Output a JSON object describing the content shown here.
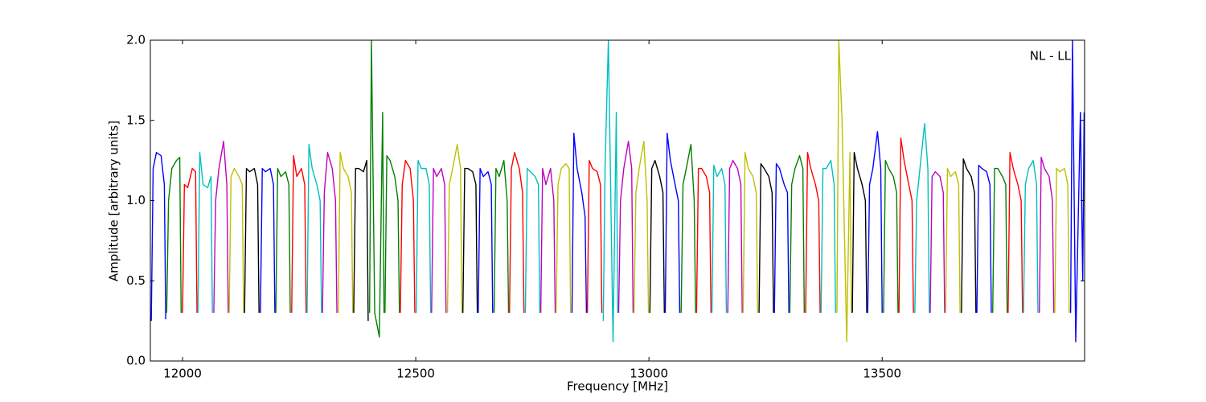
{
  "chart_data": {
    "type": "line",
    "xlabel": "Frequency [MHz]",
    "ylabel": "Amplitude [arbitrary units]",
    "annotation": "NL - LL",
    "xlim": [
      11931,
      13934
    ],
    "ylim": [
      0,
      2
    ],
    "xticks": [
      12000,
      12500,
      13000,
      13500
    ],
    "yticks": [
      {
        "value": 0,
        "label": "0.0"
      },
      {
        "value": 0.5,
        "label": "0.5"
      },
      {
        "value": 1,
        "label": "1.0"
      },
      {
        "value": 1.5,
        "label": "1.5"
      },
      {
        "value": 2,
        "label": "2.0"
      }
    ],
    "series": [
      {
        "color": "#0000ff",
        "x": [
          11933,
          11937,
          11944,
          11954,
          11961,
          11964
        ],
        "values": [
          0.25,
          1.2,
          1.3,
          1.28,
          1.1,
          0.26
        ]
      },
      {
        "color": "#008000",
        "x": [
          11966,
          11970,
          11977,
          11987,
          11994,
          11997
        ],
        "values": [
          0.3,
          1.0,
          1.2,
          1.25,
          1.27,
          0.3
        ]
      },
      {
        "color": "#ff0000",
        "x": [
          12000,
          12004,
          12011,
          12021,
          12028,
          12031
        ],
        "values": [
          0.3,
          1.1,
          1.08,
          1.2,
          1.18,
          0.3
        ]
      },
      {
        "color": "#00bfbf",
        "x": [
          12033,
          12037,
          12044,
          12054,
          12061,
          12064
        ],
        "values": [
          0.3,
          1.3,
          1.1,
          1.08,
          1.15,
          0.3
        ]
      },
      {
        "color": "#bf00bf",
        "x": [
          12067,
          12071,
          12078,
          12088,
          12095,
          12098
        ],
        "values": [
          0.3,
          1.0,
          1.2,
          1.37,
          1.1,
          0.3
        ]
      },
      {
        "color": "#bfbf00",
        "x": [
          12100,
          12104,
          12111,
          12121,
          12128,
          12131
        ],
        "values": [
          0.3,
          1.15,
          1.2,
          1.15,
          1.1,
          0.3
        ]
      },
      {
        "color": "#000000",
        "x": [
          12133,
          12137,
          12144,
          12154,
          12161,
          12164
        ],
        "values": [
          0.3,
          1.2,
          1.18,
          1.2,
          1.1,
          0.3
        ]
      },
      {
        "color": "#0000ff",
        "x": [
          12167,
          12171,
          12178,
          12188,
          12195,
          12198
        ],
        "values": [
          0.3,
          1.2,
          1.18,
          1.2,
          1.1,
          0.3
        ]
      },
      {
        "color": "#008000",
        "x": [
          12200,
          12204,
          12211,
          12221,
          12228,
          12231
        ],
        "values": [
          0.3,
          1.2,
          1.15,
          1.18,
          1.1,
          0.3
        ]
      },
      {
        "color": "#ff0000",
        "x": [
          12234,
          12238,
          12245,
          12255,
          12262,
          12265
        ],
        "values": [
          0.3,
          1.28,
          1.15,
          1.2,
          1.1,
          0.3
        ]
      },
      {
        "color": "#00bfbf",
        "x": [
          12267,
          12271,
          12278,
          12288,
          12295,
          12298
        ],
        "values": [
          0.3,
          1.35,
          1.2,
          1.1,
          1.0,
          0.3
        ]
      },
      {
        "color": "#bf00bf",
        "x": [
          12300,
          12304,
          12311,
          12321,
          12328,
          12331
        ],
        "values": [
          0.3,
          1.05,
          1.3,
          1.2,
          1.0,
          0.3
        ]
      },
      {
        "color": "#bfbf00",
        "x": [
          12334,
          12338,
          12345,
          12355,
          12362,
          12365
        ],
        "values": [
          0.3,
          1.3,
          1.2,
          1.15,
          1.05,
          0.3
        ]
      },
      {
        "color": "#000000",
        "x": [
          12367,
          12371,
          12378,
          12388,
          12395,
          12398
        ],
        "values": [
          0.3,
          1.2,
          1.2,
          1.18,
          1.25,
          0.25
        ]
      },
      {
        "color": "#008000",
        "x": [
          12401,
          12405,
          12412,
          12422,
          12429,
          12432
        ],
        "values": [
          0.3,
          2.0,
          0.3,
          0.15,
          1.55,
          0.3
        ]
      },
      {
        "color": "#008000",
        "x": [
          12434,
          12438,
          12445,
          12455,
          12462,
          12465
        ],
        "values": [
          0.3,
          1.28,
          1.25,
          1.15,
          1.0,
          0.3
        ]
      },
      {
        "color": "#ff0000",
        "x": [
          12467,
          12471,
          12478,
          12488,
          12495,
          12498
        ],
        "values": [
          0.3,
          1.1,
          1.25,
          1.2,
          1.0,
          0.3
        ]
      },
      {
        "color": "#00bfbf",
        "x": [
          12501,
          12505,
          12512,
          12522,
          12529,
          12532
        ],
        "values": [
          0.3,
          1.25,
          1.2,
          1.2,
          1.1,
          0.3
        ]
      },
      {
        "color": "#bf00bf",
        "x": [
          12534,
          12538,
          12545,
          12555,
          12562,
          12565
        ],
        "values": [
          0.3,
          1.2,
          1.15,
          1.2,
          1.1,
          0.3
        ]
      },
      {
        "color": "#bfbf00",
        "x": [
          12568,
          12572,
          12579,
          12589,
          12596,
          12599
        ],
        "values": [
          0.3,
          1.1,
          1.2,
          1.35,
          1.2,
          0.3
        ]
      },
      {
        "color": "#000000",
        "x": [
          12601,
          12605,
          12612,
          12622,
          12629,
          12632
        ],
        "values": [
          0.3,
          1.2,
          1.2,
          1.18,
          1.1,
          0.3
        ]
      },
      {
        "color": "#0000ff",
        "x": [
          12634,
          12638,
          12645,
          12655,
          12662,
          12665
        ],
        "values": [
          0.3,
          1.2,
          1.15,
          1.18,
          1.1,
          0.3
        ]
      },
      {
        "color": "#008000",
        "x": [
          12668,
          12672,
          12679,
          12689,
          12696,
          12699
        ],
        "values": [
          0.3,
          1.2,
          1.15,
          1.25,
          1.0,
          0.3
        ]
      },
      {
        "color": "#ff0000",
        "x": [
          12701,
          12705,
          12712,
          12722,
          12729,
          12732
        ],
        "values": [
          0.3,
          1.2,
          1.3,
          1.2,
          1.05,
          0.3
        ]
      },
      {
        "color": "#00bfbf",
        "x": [
          12735,
          12739,
          12746,
          12756,
          12763,
          12766
        ],
        "values": [
          0.3,
          1.2,
          1.18,
          1.15,
          1.1,
          0.3
        ]
      },
      {
        "color": "#bf00bf",
        "x": [
          12768,
          12772,
          12779,
          12789,
          12796,
          12799
        ],
        "values": [
          0.3,
          1.2,
          1.1,
          1.2,
          1.0,
          0.3
        ]
      },
      {
        "color": "#bfbf00",
        "x": [
          12801,
          12805,
          12812,
          12822,
          12829,
          12832
        ],
        "values": [
          0.3,
          1.1,
          1.2,
          1.23,
          1.2,
          0.3
        ]
      },
      {
        "color": "#0000ff",
        "x": [
          12835,
          12839,
          12846,
          12856,
          12863,
          12866
        ],
        "values": [
          0.3,
          1.42,
          1.2,
          1.05,
          0.9,
          0.3
        ]
      },
      {
        "color": "#ff0000",
        "x": [
          12868,
          12872,
          12879,
          12889,
          12896,
          12899
        ],
        "values": [
          0.3,
          1.25,
          1.2,
          1.18,
          1.1,
          0.3
        ]
      },
      {
        "color": "#00bfbf",
        "x": [
          12902,
          12906,
          12913,
          12923,
          12930,
          12933
        ],
        "values": [
          0.25,
          1.22,
          2.0,
          0.12,
          1.55,
          0.3
        ]
      },
      {
        "color": "#bf00bf",
        "x": [
          12935,
          12939,
          12946,
          12956,
          12963,
          12966
        ],
        "values": [
          0.3,
          1.0,
          1.2,
          1.37,
          1.2,
          0.3
        ]
      },
      {
        "color": "#bfbf00",
        "x": [
          12968,
          12972,
          12979,
          12989,
          12996,
          12999
        ],
        "values": [
          0.3,
          1.05,
          1.2,
          1.37,
          1.0,
          0.3
        ]
      },
      {
        "color": "#000000",
        "x": [
          13002,
          13006,
          13013,
          13023,
          13030,
          13033
        ],
        "values": [
          0.3,
          1.2,
          1.25,
          1.15,
          1.05,
          0.3
        ]
      },
      {
        "color": "#0000ff",
        "x": [
          13035,
          13039,
          13046,
          13056,
          13063,
          13066
        ],
        "values": [
          0.3,
          1.42,
          1.25,
          1.1,
          1.0,
          0.3
        ]
      },
      {
        "color": "#008000",
        "x": [
          13069,
          13073,
          13080,
          13090,
          13097,
          13100
        ],
        "values": [
          0.3,
          1.1,
          1.2,
          1.35,
          1.0,
          0.3
        ]
      },
      {
        "color": "#ff0000",
        "x": [
          13102,
          13106,
          13113,
          13123,
          13130,
          13133
        ],
        "values": [
          0.3,
          1.2,
          1.2,
          1.15,
          1.05,
          0.3
        ]
      },
      {
        "color": "#00bfbf",
        "x": [
          13135,
          13139,
          13146,
          13156,
          13163,
          13166
        ],
        "values": [
          0.3,
          1.22,
          1.15,
          1.2,
          1.1,
          0.3
        ]
      },
      {
        "color": "#bf00bf",
        "x": [
          13169,
          13173,
          13180,
          13190,
          13197,
          13200
        ],
        "values": [
          0.3,
          1.2,
          1.25,
          1.2,
          1.1,
          0.3
        ]
      },
      {
        "color": "#bfbf00",
        "x": [
          13202,
          13206,
          13213,
          13223,
          13230,
          13233
        ],
        "values": [
          0.3,
          1.3,
          1.2,
          1.15,
          1.05,
          0.3
        ]
      },
      {
        "color": "#000000",
        "x": [
          13236,
          13240,
          13247,
          13257,
          13264,
          13267
        ],
        "values": [
          0.3,
          1.23,
          1.2,
          1.15,
          1.05,
          0.3
        ]
      },
      {
        "color": "#0000ff",
        "x": [
          13269,
          13273,
          13280,
          13290,
          13297,
          13300
        ],
        "values": [
          0.3,
          1.23,
          1.2,
          1.1,
          1.05,
          0.3
        ]
      },
      {
        "color": "#008000",
        "x": [
          13302,
          13306,
          13313,
          13323,
          13330,
          13333
        ],
        "values": [
          0.3,
          1.1,
          1.2,
          1.28,
          1.2,
          0.3
        ]
      },
      {
        "color": "#ff0000",
        "x": [
          13336,
          13340,
          13347,
          13357,
          13364,
          13367
        ],
        "values": [
          0.3,
          1.3,
          1.2,
          1.1,
          1.0,
          0.3
        ]
      },
      {
        "color": "#00bfbf",
        "x": [
          13369,
          13373,
          13380,
          13390,
          13397,
          13400
        ],
        "values": [
          0.3,
          1.2,
          1.2,
          1.25,
          1.1,
          0.3
        ]
      },
      {
        "color": "#bfbf00",
        "x": [
          13403,
          13407,
          13414,
          13424,
          13431,
          13434
        ],
        "values": [
          0.3,
          2.0,
          1.5,
          0.12,
          1.3,
          0.3
        ]
      },
      {
        "color": "#000000",
        "x": [
          13436,
          13440,
          13447,
          13457,
          13464,
          13467
        ],
        "values": [
          0.3,
          1.3,
          1.2,
          1.1,
          1.0,
          0.3
        ]
      },
      {
        "color": "#0000ff",
        "x": [
          13469,
          13473,
          13480,
          13490,
          13497,
          13500
        ],
        "values": [
          0.3,
          1.1,
          1.2,
          1.43,
          1.2,
          0.3
        ]
      },
      {
        "color": "#008000",
        "x": [
          13503,
          13507,
          13514,
          13524,
          13531,
          13534
        ],
        "values": [
          0.3,
          1.25,
          1.2,
          1.15,
          1.05,
          0.3
        ]
      },
      {
        "color": "#ff0000",
        "x": [
          13536,
          13540,
          13547,
          13557,
          13564,
          13567
        ],
        "values": [
          0.3,
          1.39,
          1.25,
          1.1,
          1.0,
          0.3
        ]
      },
      {
        "color": "#00bfbf",
        "x": [
          13570,
          13574,
          13581,
          13591,
          13598,
          13601
        ],
        "values": [
          0.3,
          1.0,
          1.2,
          1.48,
          1.2,
          0.3
        ]
      },
      {
        "color": "#bf00bf",
        "x": [
          13603,
          13607,
          13614,
          13624,
          13631,
          13634
        ],
        "values": [
          0.3,
          1.15,
          1.18,
          1.15,
          1.05,
          0.3
        ]
      },
      {
        "color": "#bfbf00",
        "x": [
          13636,
          13640,
          13647,
          13657,
          13664,
          13667
        ],
        "values": [
          0.3,
          1.2,
          1.15,
          1.18,
          1.1,
          0.3
        ]
      },
      {
        "color": "#000000",
        "x": [
          13670,
          13674,
          13681,
          13691,
          13698,
          13701
        ],
        "values": [
          0.3,
          1.26,
          1.2,
          1.15,
          1.05,
          0.3
        ]
      },
      {
        "color": "#0000ff",
        "x": [
          13703,
          13707,
          13714,
          13724,
          13731,
          13734
        ],
        "values": [
          0.3,
          1.22,
          1.2,
          1.18,
          1.1,
          0.3
        ]
      },
      {
        "color": "#008000",
        "x": [
          13737,
          13741,
          13748,
          13758,
          13765,
          13768
        ],
        "values": [
          0.3,
          1.2,
          1.2,
          1.15,
          1.1,
          0.3
        ]
      },
      {
        "color": "#ff0000",
        "x": [
          13770,
          13774,
          13781,
          13791,
          13798,
          13801
        ],
        "values": [
          0.3,
          1.3,
          1.2,
          1.1,
          1.0,
          0.3
        ]
      },
      {
        "color": "#00bfbf",
        "x": [
          13803,
          13807,
          13814,
          13824,
          13831,
          13834
        ],
        "values": [
          0.3,
          1.1,
          1.2,
          1.25,
          1.1,
          0.3
        ]
      },
      {
        "color": "#bf00bf",
        "x": [
          13837,
          13841,
          13848,
          13858,
          13865,
          13868
        ],
        "values": [
          0.3,
          1.27,
          1.2,
          1.15,
          1.0,
          0.3
        ]
      },
      {
        "color": "#bfbf00",
        "x": [
          13870,
          13874,
          13881,
          13891,
          13898,
          13901
        ],
        "values": [
          0.3,
          1.2,
          1.18,
          1.2,
          1.1,
          0.3
        ]
      },
      {
        "color": "#0000ff",
        "x": [
          13904,
          13908,
          13915,
          13925,
          13930,
          13933
        ],
        "values": [
          0.3,
          2.0,
          0.12,
          1.55,
          0.5,
          1.55
        ]
      }
    ]
  }
}
